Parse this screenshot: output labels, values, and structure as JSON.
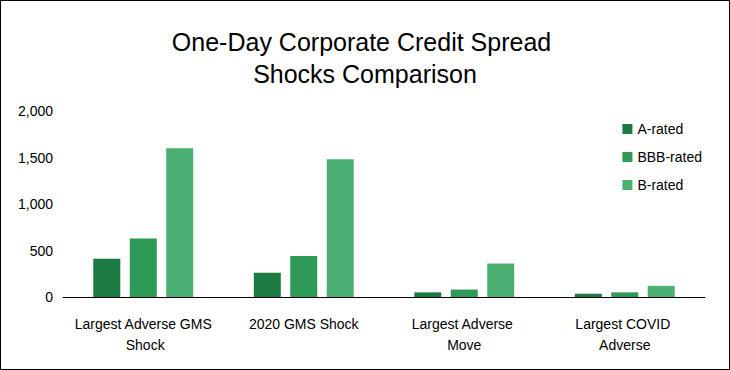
{
  "chart_data": {
    "type": "bar",
    "title": "One-Day Corporate Credit Spread Shocks Comparison",
    "categories": [
      "Largest Adverse GMS Shock",
      "2020 GMS Shock",
      "Largest Adverse Move",
      "Largest COVID Adverse"
    ],
    "series": [
      {
        "name": "A-rated",
        "color": "#1b7a42",
        "values": [
          410,
          260,
          50,
          35
        ]
      },
      {
        "name": "BBB-rated",
        "color": "#2e9a57",
        "values": [
          630,
          440,
          80,
          50
        ]
      },
      {
        "name": "B-rated",
        "color": "#4caf72",
        "values": [
          1600,
          1480,
          360,
          120
        ]
      }
    ],
    "ylim": [
      0,
      2000
    ],
    "yticks": [
      0,
      500,
      1000,
      1500,
      2000
    ],
    "grid": false,
    "legend": "upper right"
  }
}
